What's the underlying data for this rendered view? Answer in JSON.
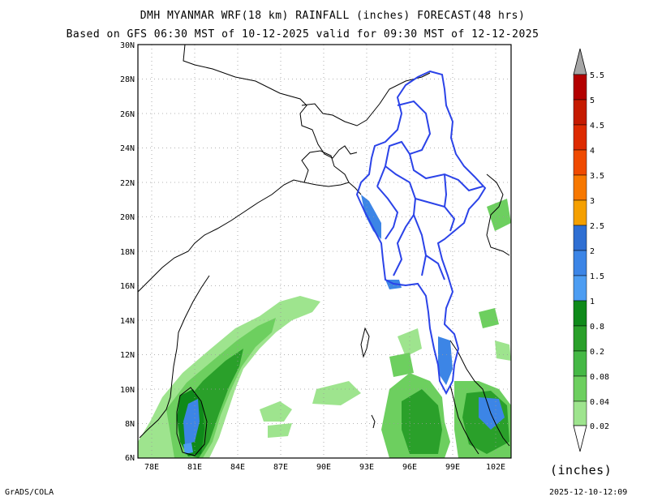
{
  "title": {
    "line1": "DMH MYANMAR WRF(18 km) RAINFALL (inches) FORECAST(48 hrs)",
    "line2": "Based on GFS 06:30 MST of 10-12-2025 valid for 09:30 MST of 12-12-2025"
  },
  "map": {
    "lat_labels": [
      "30N",
      "28N",
      "26N",
      "24N",
      "22N",
      "20N",
      "18N",
      "16N",
      "14N",
      "12N",
      "10N",
      "8N",
      "6N"
    ],
    "lon_labels": [
      "78E",
      "81E",
      "84E",
      "87E",
      "90E",
      "93E",
      "96E",
      "99E",
      "102E"
    ],
    "extent": {
      "lon_min": 77,
      "lon_max": 103,
      "lat_min": 6,
      "lat_max": 30
    },
    "colors": {
      "coastline": "#000000",
      "boundary": "#2b43e8",
      "grid": "#9a9a9a"
    }
  },
  "legend": {
    "labels": [
      "5.5",
      "5",
      "4.5",
      "4",
      "3.5",
      "3",
      "2.5",
      "2",
      "1.5",
      "1",
      "0.8",
      "0.2",
      "0.08",
      "0.04",
      "0.02"
    ],
    "colors": [
      "#b30000",
      "#c51a00",
      "#dd2a00",
      "#ef4a00",
      "#f77800",
      "#f5a000",
      "#2f6fd3",
      "#3c85e6",
      "#4d9df2",
      "#0f8a1a",
      "#2aa02a",
      "#45b845",
      "#6dcf5f",
      "#9ee48e"
    ],
    "units": "(inches)"
  },
  "footer": {
    "left": "GrADS/COLA",
    "right": "2025-12-10-12:09"
  }
}
